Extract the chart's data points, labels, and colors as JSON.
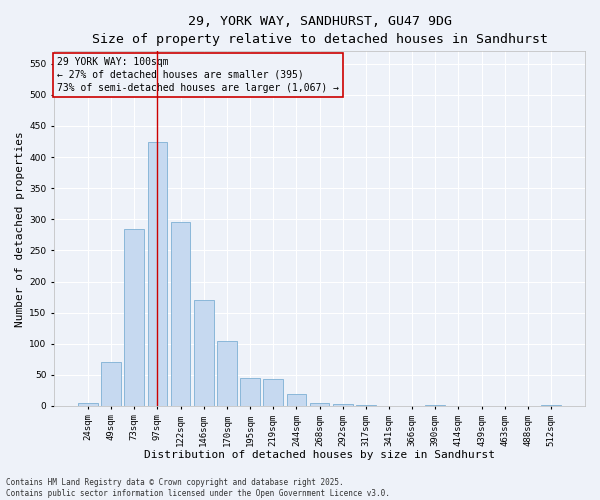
{
  "title_line1": "29, YORK WAY, SANDHURST, GU47 9DG",
  "title_line2": "Size of property relative to detached houses in Sandhurst",
  "xlabel": "Distribution of detached houses by size in Sandhurst",
  "ylabel": "Number of detached properties",
  "categories": [
    "24sqm",
    "49sqm",
    "73sqm",
    "97sqm",
    "122sqm",
    "146sqm",
    "170sqm",
    "195sqm",
    "219sqm",
    "244sqm",
    "268sqm",
    "292sqm",
    "317sqm",
    "341sqm",
    "366sqm",
    "390sqm",
    "414sqm",
    "439sqm",
    "463sqm",
    "488sqm",
    "512sqm"
  ],
  "values": [
    5,
    70,
    285,
    425,
    295,
    170,
    105,
    45,
    43,
    20,
    5,
    3,
    1,
    0,
    0,
    1,
    0,
    0,
    0,
    0,
    1
  ],
  "bar_color": "#c6d9f0",
  "bar_edge_color": "#7eb0d4",
  "vline_color": "#cc0000",
  "vline_index": 3.5,
  "annotation_box_text": "29 YORK WAY: 100sqm\n← 27% of detached houses are smaller (395)\n73% of semi-detached houses are larger (1,067) →",
  "box_edge_color": "#cc0000",
  "background_color": "#eef2f9",
  "grid_color": "#ffffff",
  "ylim": [
    0,
    570
  ],
  "yticks": [
    0,
    50,
    100,
    150,
    200,
    250,
    300,
    350,
    400,
    450,
    500,
    550
  ],
  "footnote": "Contains HM Land Registry data © Crown copyright and database right 2025.\nContains public sector information licensed under the Open Government Licence v3.0.",
  "title_fontsize": 9.5,
  "subtitle_fontsize": 8.5,
  "tick_fontsize": 6.5,
  "label_fontsize": 8,
  "annotation_fontsize": 7,
  "footnote_fontsize": 5.5
}
